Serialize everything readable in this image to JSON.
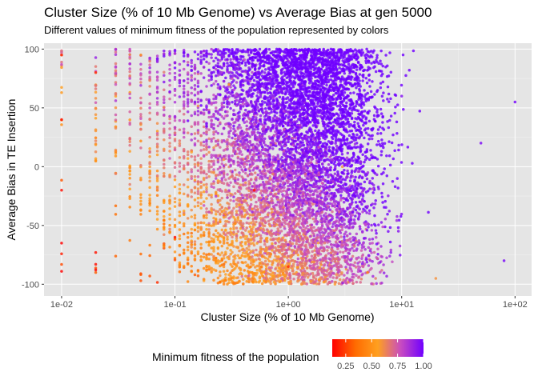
{
  "chart_data": {
    "type": "scatter",
    "title": "Cluster Size (% of 10 Mb Genome) vs Average Bias at gen 5000",
    "subtitle": "Different values of minimum fitness of the population represented by colors",
    "xlabel": "Cluster Size (% of 10 Mb Genome)",
    "ylabel": "Average Bias in TE Insertion",
    "x_scale": "log10",
    "xlim": [
      0.007,
      140
    ],
    "ylim": [
      -110,
      105
    ],
    "x_ticks": [
      0.01,
      0.1,
      1,
      10,
      100
    ],
    "x_tick_labels": [
      "1e-02",
      "1e-01",
      "1e+00",
      "1e+01",
      "1e+02"
    ],
    "y_ticks": [
      -100,
      -50,
      0,
      50,
      100
    ],
    "y_tick_labels": [
      "-100",
      "-50",
      "0",
      "50",
      "100"
    ],
    "grid": true,
    "panel_background": "#e5e5e5",
    "color_legend": {
      "title": "Minimum fitness of the population",
      "position": "bottom",
      "range": [
        0.12,
        1.0
      ],
      "ticks": [
        0.25,
        0.5,
        0.75,
        1.0
      ],
      "tick_labels": [
        "0.25",
        "0.50",
        "0.75",
        "1.00"
      ],
      "colors": [
        "#ff0000",
        "#ff6a00",
        "#ffa020",
        "#c84cc0",
        "#7000ff"
      ]
    },
    "point_sample": [
      {
        "x": 0.01,
        "y": 95,
        "fitness": 0.2
      },
      {
        "x": 0.01,
        "y": 40,
        "fitness": 0.15
      },
      {
        "x": 0.01,
        "y": -20,
        "fitness": 0.15
      },
      {
        "x": 0.01,
        "y": -65,
        "fitness": 0.12
      },
      {
        "x": 0.02,
        "y": 80,
        "fitness": 0.2
      },
      {
        "x": 0.02,
        "y": -83,
        "fitness": 0.15
      },
      {
        "x": 0.05,
        "y": 95,
        "fitness": 0.5
      },
      {
        "x": 0.1,
        "y": -60,
        "fitness": 0.15
      },
      {
        "x": 0.3,
        "y": 70,
        "fitness": 0.55
      },
      {
        "x": 0.5,
        "y": -20,
        "fitness": 0.15
      },
      {
        "x": 1,
        "y": -85,
        "fitness": 0.2
      },
      {
        "x": 1,
        "y": 90,
        "fitness": 0.9
      },
      {
        "x": 3,
        "y": 0,
        "fitness": 0.6
      },
      {
        "x": 5,
        "y": -90,
        "fitness": 0.4
      },
      {
        "x": 10,
        "y": 60,
        "fitness": 0.95
      },
      {
        "x": 20,
        "y": -95,
        "fitness": 0.6
      },
      {
        "x": 50,
        "y": 20,
        "fitness": 0.97
      },
      {
        "x": 80,
        "y": -80,
        "fitness": 0.98
      },
      {
        "x": 100,
        "y": 55,
        "fitness": 0.99
      }
    ],
    "n_points_estimate": 8000
  }
}
